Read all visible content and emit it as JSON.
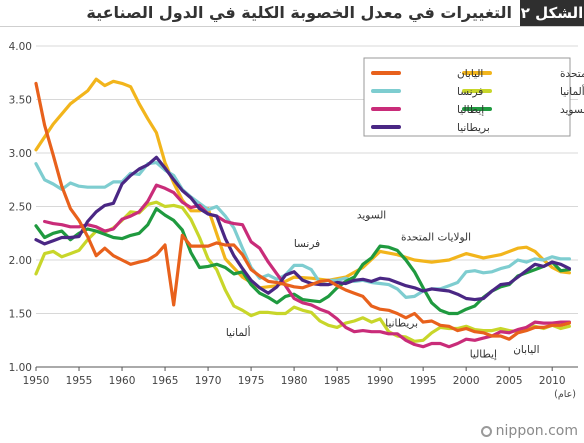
{
  "title": {
    "badge": "الشكل ٢",
    "text": "التغييرات في معدل الخصوبة الكلية في الدول الصناعية"
  },
  "watermark": "nippon.com",
  "chart_data": {
    "type": "line",
    "xlabel": "(عام)",
    "ylabel": "",
    "xlim": [
      1950,
      2013
    ],
    "ylim": [
      1.0,
      4.0
    ],
    "x_ticks": [
      1950,
      1955,
      1960,
      1965,
      1970,
      1975,
      1980,
      1985,
      1990,
      1995,
      2000,
      2005,
      2010
    ],
    "y_ticks": [
      1.0,
      1.5,
      2.0,
      2.5,
      3.0,
      3.5,
      4.0
    ],
    "y_tick_labels": [
      "1.00",
      "1.50",
      "2.00",
      "2.50",
      "3.00",
      "3.50",
      "4.00"
    ],
    "grid": true,
    "legend_position": "top-right",
    "series": [
      {
        "name": "اليابان",
        "color": "#e8611c",
        "label": "اليابان",
        "x": [
          1950,
          1951,
          1952,
          1953,
          1954,
          1955,
          1956,
          1957,
          1958,
          1959,
          1960,
          1961,
          1962,
          1963,
          1964,
          1965,
          1966,
          1967,
          1968,
          1969,
          1970,
          1971,
          1972,
          1973,
          1974,
          1975,
          1976,
          1977,
          1978,
          1979,
          1980,
          1981,
          1982,
          1983,
          1984,
          1985,
          1986,
          1987,
          1988,
          1989,
          1990,
          1991,
          1992,
          1993,
          1994,
          1995,
          1996,
          1997,
          1998,
          1999,
          2000,
          2001,
          2002,
          2003,
          2004,
          2005,
          2006,
          2007,
          2008,
          2009,
          2010,
          2011,
          2012
        ],
        "y": [
          3.65,
          3.26,
          2.98,
          2.69,
          2.48,
          2.37,
          2.22,
          2.04,
          2.11,
          2.04,
          2.0,
          1.96,
          1.98,
          2.0,
          2.05,
          2.14,
          1.58,
          2.23,
          2.13,
          2.13,
          2.13,
          2.16,
          2.14,
          2.14,
          2.05,
          1.91,
          1.85,
          1.8,
          1.79,
          1.77,
          1.75,
          1.74,
          1.77,
          1.8,
          1.81,
          1.76,
          1.72,
          1.69,
          1.66,
          1.57,
          1.54,
          1.53,
          1.5,
          1.46,
          1.5,
          1.42,
          1.43,
          1.39,
          1.38,
          1.34,
          1.36,
          1.33,
          1.32,
          1.29,
          1.29,
          1.26,
          1.32,
          1.34,
          1.37,
          1.37,
          1.39,
          1.39,
          1.41
        ]
      },
      {
        "name": "الولايات المتحدة",
        "color": "#f2b51c",
        "label": "الولايات المتحدة",
        "x": [
          1950,
          1952,
          1954,
          1956,
          1957,
          1958,
          1959,
          1960,
          1961,
          1962,
          1963,
          1964,
          1965,
          1966,
          1967,
          1968,
          1969,
          1970,
          1972,
          1974,
          1976,
          1978,
          1980,
          1982,
          1984,
          1986,
          1988,
          1990,
          1992,
          1994,
          1996,
          1998,
          2000,
          2002,
          2004,
          2006,
          2007,
          2008,
          2009,
          2010,
          2011,
          2012
        ],
        "y": [
          3.03,
          3.27,
          3.46,
          3.58,
          3.69,
          3.63,
          3.67,
          3.65,
          3.62,
          3.46,
          3.32,
          3.19,
          2.91,
          2.72,
          2.56,
          2.46,
          2.46,
          2.48,
          2.01,
          1.84,
          1.74,
          1.76,
          1.84,
          1.83,
          1.81,
          1.84,
          1.93,
          2.08,
          2.05,
          2.0,
          1.98,
          2.0,
          2.06,
          2.02,
          2.05,
          2.11,
          2.12,
          2.08,
          2.0,
          1.93,
          1.89,
          1.88
        ]
      },
      {
        "name": "فرنسا",
        "color": "#7ecdd0",
        "label": "فرنسا",
        "x": [
          1950,
          1951,
          1952,
          1953,
          1954,
          1955,
          1956,
          1957,
          1958,
          1959,
          1960,
          1961,
          1962,
          1963,
          1964,
          1965,
          1966,
          1967,
          1968,
          1969,
          1970,
          1971,
          1972,
          1973,
          1974,
          1975,
          1976,
          1977,
          1978,
          1979,
          1980,
          1981,
          1982,
          1983,
          1984,
          1985,
          1986,
          1987,
          1988,
          1989,
          1990,
          1991,
          1992,
          1993,
          1994,
          1995,
          1996,
          1997,
          1998,
          1999,
          2000,
          2001,
          2002,
          2003,
          2004,
          2005,
          2006,
          2007,
          2008,
          2009,
          2010,
          2011,
          2012
        ],
        "y": [
          2.9,
          2.75,
          2.71,
          2.66,
          2.72,
          2.69,
          2.68,
          2.68,
          2.68,
          2.73,
          2.73,
          2.81,
          2.8,
          2.9,
          2.91,
          2.84,
          2.79,
          2.66,
          2.59,
          2.53,
          2.47,
          2.5,
          2.41,
          2.3,
          2.11,
          1.93,
          1.83,
          1.86,
          1.82,
          1.86,
          1.95,
          1.95,
          1.91,
          1.79,
          1.81,
          1.81,
          1.83,
          1.8,
          1.81,
          1.79,
          1.78,
          1.77,
          1.73,
          1.65,
          1.66,
          1.71,
          1.73,
          1.73,
          1.76,
          1.79,
          1.89,
          1.9,
          1.88,
          1.89,
          1.92,
          1.94,
          2.0,
          1.98,
          2.01,
          2.0,
          2.03,
          2.01,
          2.01
        ]
      },
      {
        "name": "ألمانيا",
        "color": "#c8d62a",
        "label": "ألمانيا",
        "x": [
          1950,
          1951,
          1952,
          1953,
          1954,
          1955,
          1956,
          1957,
          1958,
          1959,
          1960,
          1961,
          1962,
          1963,
          1964,
          1965,
          1966,
          1967,
          1968,
          1969,
          1970,
          1971,
          1972,
          1973,
          1974,
          1975,
          1976,
          1977,
          1978,
          1979,
          1980,
          1981,
          1982,
          1983,
          1984,
          1985,
          1986,
          1987,
          1988,
          1989,
          1990,
          1991,
          1992,
          1993,
          1994,
          1995,
          1996,
          1997,
          1998,
          1999,
          2000,
          2001,
          2002,
          2003,
          2004,
          2005,
          2006,
          2007,
          2008,
          2009,
          2010,
          2011,
          2012
        ],
        "y": [
          1.87,
          2.06,
          2.08,
          2.03,
          2.06,
          2.09,
          2.19,
          2.27,
          2.26,
          2.3,
          2.37,
          2.45,
          2.44,
          2.52,
          2.54,
          2.5,
          2.51,
          2.49,
          2.38,
          2.21,
          2.01,
          1.91,
          1.72,
          1.57,
          1.53,
          1.48,
          1.51,
          1.51,
          1.5,
          1.5,
          1.56,
          1.53,
          1.51,
          1.43,
          1.39,
          1.37,
          1.41,
          1.43,
          1.46,
          1.42,
          1.45,
          1.33,
          1.29,
          1.28,
          1.24,
          1.25,
          1.32,
          1.37,
          1.36,
          1.36,
          1.38,
          1.35,
          1.34,
          1.34,
          1.36,
          1.34,
          1.33,
          1.37,
          1.38,
          1.36,
          1.39,
          1.36,
          1.38
        ]
      },
      {
        "name": "إيطاليا",
        "color": "#c92c79",
        "label": "إيطاليا",
        "x": [
          1951,
          1952,
          1953,
          1954,
          1955,
          1956,
          1957,
          1958,
          1959,
          1960,
          1961,
          1962,
          1963,
          1964,
          1965,
          1966,
          1967,
          1968,
          1969,
          1970,
          1971,
          1972,
          1973,
          1974,
          1975,
          1976,
          1977,
          1978,
          1979,
          1980,
          1981,
          1982,
          1983,
          1984,
          1985,
          1986,
          1987,
          1988,
          1989,
          1990,
          1991,
          1992,
          1993,
          1994,
          1995,
          1996,
          1997,
          1998,
          1999,
          2000,
          2001,
          2002,
          2003,
          2004,
          2005,
          2006,
          2007,
          2008,
          2009,
          2010,
          2011,
          2012
        ],
        "y": [
          2.36,
          2.34,
          2.33,
          2.31,
          2.31,
          2.33,
          2.31,
          2.27,
          2.29,
          2.38,
          2.41,
          2.45,
          2.55,
          2.7,
          2.67,
          2.63,
          2.54,
          2.49,
          2.51,
          2.43,
          2.41,
          2.36,
          2.34,
          2.33,
          2.17,
          2.11,
          1.98,
          1.87,
          1.76,
          1.64,
          1.6,
          1.58,
          1.54,
          1.51,
          1.45,
          1.37,
          1.33,
          1.34,
          1.33,
          1.33,
          1.31,
          1.31,
          1.25,
          1.21,
          1.19,
          1.22,
          1.22,
          1.19,
          1.22,
          1.26,
          1.25,
          1.27,
          1.29,
          1.33,
          1.32,
          1.35,
          1.37,
          1.42,
          1.41,
          1.41,
          1.42,
          1.42
        ]
      },
      {
        "name": "السويد",
        "color": "#1f9a3f",
        "label": "السويد",
        "x": [
          1950,
          1951,
          1952,
          1953,
          1954,
          1955,
          1956,
          1957,
          1958,
          1959,
          1960,
          1961,
          1962,
          1963,
          1964,
          1965,
          1966,
          1967,
          1968,
          1969,
          1970,
          1971,
          1972,
          1973,
          1974,
          1975,
          1976,
          1977,
          1978,
          1979,
          1980,
          1981,
          1982,
          1983,
          1984,
          1985,
          1986,
          1987,
          1988,
          1989,
          1990,
          1991,
          1992,
          1993,
          1994,
          1995,
          1996,
          1997,
          1998,
          1999,
          2000,
          2001,
          2002,
          2003,
          2004,
          2005,
          2006,
          2007,
          2008,
          2009,
          2010,
          2011,
          2012
        ],
        "y": [
          2.32,
          2.21,
          2.25,
          2.27,
          2.19,
          2.25,
          2.29,
          2.27,
          2.24,
          2.21,
          2.2,
          2.23,
          2.25,
          2.33,
          2.48,
          2.42,
          2.37,
          2.28,
          2.07,
          1.93,
          1.94,
          1.96,
          1.93,
          1.87,
          1.89,
          1.77,
          1.69,
          1.65,
          1.6,
          1.66,
          1.68,
          1.63,
          1.62,
          1.61,
          1.66,
          1.74,
          1.8,
          1.84,
          1.96,
          2.02,
          2.13,
          2.12,
          2.09,
          2.0,
          1.89,
          1.74,
          1.6,
          1.53,
          1.5,
          1.5,
          1.54,
          1.57,
          1.65,
          1.71,
          1.75,
          1.77,
          1.85,
          1.88,
          1.91,
          1.94,
          1.98,
          1.9,
          1.91
        ]
      },
      {
        "name": "بريطانيا",
        "color": "#4a2784",
        "label": "بريطانيا",
        "x": [
          1950,
          1951,
          1952,
          1953,
          1954,
          1955,
          1956,
          1957,
          1958,
          1959,
          1960,
          1961,
          1962,
          1963,
          1964,
          1965,
          1966,
          1967,
          1968,
          1969,
          1970,
          1971,
          1972,
          1973,
          1974,
          1975,
          1976,
          1977,
          1978,
          1979,
          1980,
          1981,
          1982,
          1983,
          1984,
          1985,
          1986,
          1987,
          1988,
          1989,
          1990,
          1991,
          1992,
          1993,
          1994,
          1995,
          1996,
          1997,
          1998,
          1999,
          2000,
          2001,
          2002,
          2003,
          2004,
          2005,
          2006,
          2007,
          2008,
          2009,
          2010,
          2011,
          2012
        ],
        "y": [
          2.19,
          2.15,
          2.18,
          2.21,
          2.21,
          2.22,
          2.36,
          2.45,
          2.51,
          2.53,
          2.71,
          2.79,
          2.85,
          2.89,
          2.96,
          2.86,
          2.75,
          2.65,
          2.58,
          2.48,
          2.43,
          2.41,
          2.2,
          2.04,
          1.92,
          1.81,
          1.74,
          1.69,
          1.75,
          1.86,
          1.89,
          1.81,
          1.78,
          1.77,
          1.77,
          1.79,
          1.78,
          1.81,
          1.82,
          1.8,
          1.83,
          1.82,
          1.79,
          1.76,
          1.74,
          1.71,
          1.73,
          1.72,
          1.71,
          1.68,
          1.64,
          1.63,
          1.64,
          1.71,
          1.77,
          1.78,
          1.84,
          1.9,
          1.96,
          1.94,
          1.98,
          1.96,
          1.92
        ]
      }
    ],
    "annotations": [
      {
        "text": "السويد",
        "series": "السويد",
        "x": 1989,
        "y": 2.39
      },
      {
        "text": "الولايات المتحدة",
        "series": "الولايات المتحدة",
        "x": 1996.5,
        "y": 2.18
      },
      {
        "text": "فرنسا",
        "series": "فرنسا",
        "x": 1981.5,
        "y": 2.12
      },
      {
        "text": "ألمانيا",
        "series": "ألمانيا",
        "x": 1973.5,
        "y": 1.29
      },
      {
        "text": "بريطانيا",
        "series": "بريطانيا",
        "x": 1992.5,
        "y": 1.38
      },
      {
        "text": "إيطاليا",
        "series": "إيطاليا",
        "x": 2002,
        "y": 1.09
      },
      {
        "text": "اليابان",
        "series": "اليابان",
        "x": 2007,
        "y": 1.13
      }
    ]
  }
}
